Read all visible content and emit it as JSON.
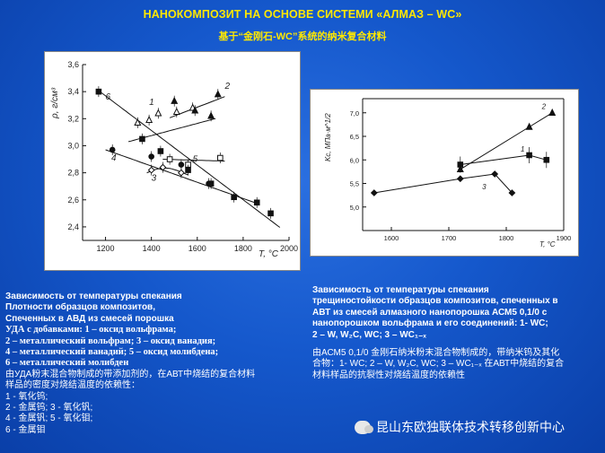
{
  "header": {
    "title_ru": "НАНОКОМПОЗИТ НА ОСНОВЕ СИСТЕМИ «АЛМАЗ – WC»",
    "title_zh": "基于“金刚石-WC”系统的纳米复合材料"
  },
  "caption1": {
    "l1": "Зависимость от температуры спекания",
    "l2": "Плотности образцов композитов,",
    "l3": "Спеченных в АВД из смесей порошка",
    "l4": "УДА с добавками: 1 – оксид вольфрама;",
    "l5": "2 – металлический вольфрам; 3 – оксид ванадия;",
    "l6": "4 – металлический ванадий; 5 – оксид молибдена;",
    "l7": "6 – металлический молибден",
    "zh1": "由УДА粉末混合物制成的带添加剂的，在АВТ中烧结的复合材料",
    "zh2": "样品的密度对烧结温度的依赖性：",
    "zh3": "1 - 氧化钨;",
    "zh4": "2 - 金属钨; 3 - 氧化钒;",
    "zh5": "4 - 金属钒; 5 - 氧化钼;",
    "zh6": "6 - 金属钼"
  },
  "caption2": {
    "l1": "Зависимость от температуры спекания",
    "l2": "трещиностойкости образцов композитов, спеченных в",
    "l3": "АВТ из смесей алмазного нанопорошка АСМ5 0,1/0 с",
    "l4": "нанопорошком вольфрама и его соединений: 1- WC;",
    "l5": "2 – W, W₂C, WC; 3 – WC₁₋ₓ",
    "zh1": "由АСМ5 0,1/0 金刚石纳米粉末混合物制成的，带纳米钨及其化",
    "zh2": "合物：1- WC; 2 – W, W₂C, WC; 3 – WC₁₋ₓ 在АВТ中烧结的复合",
    "zh3": "材料样品的抗裂性对烧结温度的依赖性"
  },
  "watermark": "昆山东欧独联体技术转移创新中心",
  "chart_data": [
    {
      "type": "scatter",
      "title": "",
      "xlabel": "T, °C",
      "ylabel": "ρ, г/см³",
      "xlim": [
        1100,
        2000
      ],
      "ylim": [
        2.3,
        3.6
      ],
      "xticks": [
        1200,
        1400,
        1600,
        1800,
        2000
      ],
      "yticks": [
        2.4,
        2.6,
        2.8,
        3.0,
        3.2,
        3.4,
        3.6
      ],
      "series": [
        {
          "name": "1",
          "marker": "open-triangle",
          "points": [
            [
              1340,
              3.17
            ],
            [
              1390,
              3.19
            ],
            [
              1430,
              3.24
            ],
            [
              1510,
              3.25
            ],
            [
              1580,
              3.28
            ]
          ]
        },
        {
          "name": "2",
          "marker": "filled-triangle",
          "points": [
            [
              1500,
              3.33
            ],
            [
              1590,
              3.26
            ],
            [
              1660,
              3.22
            ],
            [
              1690,
              3.38
            ]
          ]
        },
        {
          "name": "3",
          "marker": "open-diamond",
          "points": [
            [
              1400,
              2.82
            ],
            [
              1450,
              2.84
            ],
            [
              1530,
              2.8
            ]
          ]
        },
        {
          "name": "4",
          "marker": "filled-circle",
          "points": [
            [
              1230,
              2.97
            ],
            [
              1400,
              2.92
            ],
            [
              1530,
              2.86
            ],
            [
              1650,
              2.72
            ]
          ]
        },
        {
          "name": "5",
          "marker": "open-square",
          "points": [
            [
              1480,
              2.9
            ],
            [
              1560,
              2.86
            ],
            [
              1700,
              2.91
            ]
          ]
        },
        {
          "name": "6",
          "marker": "filled-square",
          "points": [
            [
              1170,
              3.4
            ],
            [
              1360,
              3.05
            ],
            [
              1440,
              2.96
            ],
            [
              1560,
              2.82
            ],
            [
              1660,
              2.72
            ],
            [
              1760,
              2.62
            ],
            [
              1860,
              2.58
            ],
            [
              1920,
              2.5
            ]
          ]
        }
      ],
      "curve_labels": [
        "1",
        "2",
        "3",
        "4",
        "5",
        "6"
      ]
    },
    {
      "type": "line",
      "title": "",
      "xlabel": "T, °C",
      "ylabel": "Kc, МПа·м^1/2",
      "xlim": [
        1550,
        1900
      ],
      "ylim": [
        4.5,
        7.3
      ],
      "xticks": [
        1600,
        1700,
        1800,
        1900
      ],
      "yticks": [
        5.0,
        5.5,
        6.0,
        6.5,
        7.0
      ],
      "series": [
        {
          "name": "1",
          "marker": "filled-square",
          "x": [
            1720,
            1840,
            1870
          ],
          "y": [
            5.9,
            6.1,
            6.0
          ]
        },
        {
          "name": "2",
          "marker": "filled-triangle",
          "x": [
            1720,
            1840,
            1880
          ],
          "y": [
            5.8,
            6.7,
            7.0
          ]
        },
        {
          "name": "3",
          "marker": "filled-diamond",
          "x": [
            1570,
            1720,
            1780,
            1810
          ],
          "y": [
            5.3,
            5.6,
            5.7,
            5.3
          ]
        }
      ]
    }
  ]
}
